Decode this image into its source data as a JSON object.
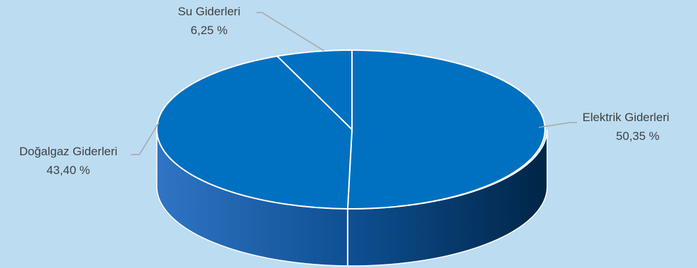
{
  "chart_data": {
    "type": "pie",
    "style": "3d",
    "unit": "%",
    "slices": [
      {
        "name": "Elektrik Giderleri",
        "value": 50.35,
        "value_label": "50,35 %"
      },
      {
        "name": "Doğalgaz Giderleri",
        "value": 43.4,
        "value_label": "43,40 %"
      },
      {
        "name": "Su Giderleri",
        "value": 6.25,
        "value_label": "6,25 %"
      }
    ],
    "title": "",
    "legend": "none",
    "data_labels": "outside with leader lines"
  },
  "colors": {
    "background": "#bcdcf1",
    "slice_top": "#0070c0",
    "slice_border": "#ffffff",
    "leader_line": "#a6a6a6",
    "label_text": "#404040"
  }
}
